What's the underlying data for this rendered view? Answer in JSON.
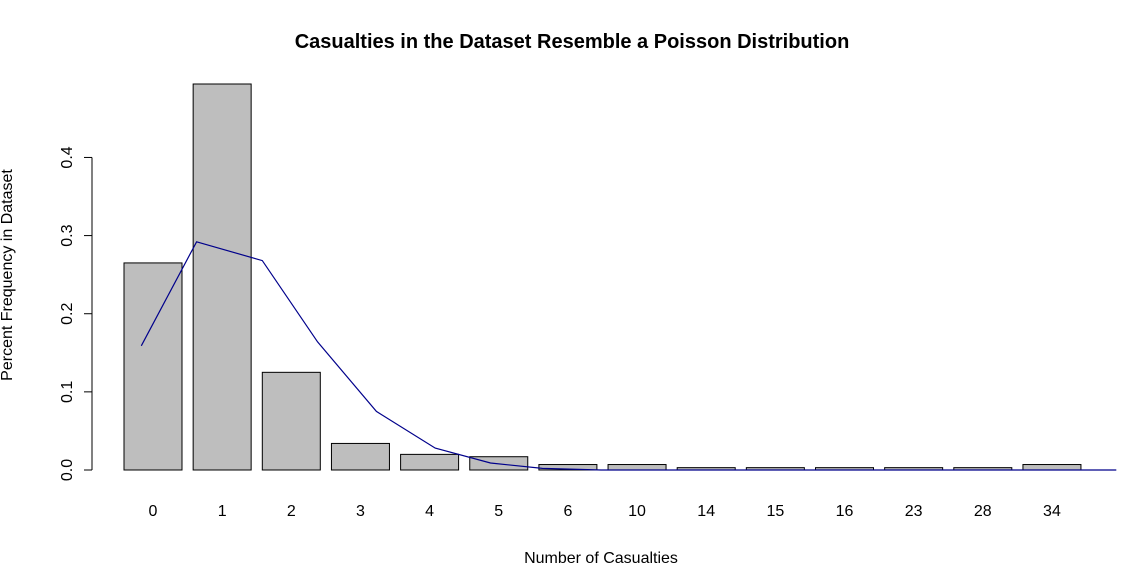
{
  "chart_data": {
    "type": "bar",
    "title": "Casualties in the Dataset Resemble a Poisson Distribution",
    "xlabel": "Number of Casualties",
    "ylabel": "Percent Frequency in Dataset",
    "categories": [
      "0",
      "1",
      "2",
      "3",
      "4",
      "5",
      "6",
      "10",
      "14",
      "15",
      "16",
      "23",
      "28",
      "34"
    ],
    "series": [
      {
        "type": "bar",
        "values": [
          0.265,
          0.494,
          0.125,
          0.034,
          0.02,
          0.017,
          0.007,
          0.007,
          0.003,
          0.003,
          0.003,
          0.003,
          0.003,
          0.007
        ],
        "color": "#bebebe"
      },
      {
        "type": "line",
        "x": [
          0.25,
          1.05,
          2.0,
          2.8,
          3.65,
          4.5,
          5.3,
          6.05,
          6.9,
          7.7,
          8.5,
          9.35,
          10.2,
          11.0,
          11.9,
          12.7,
          13.5,
          14.35
        ],
        "values": [
          0.159,
          0.292,
          0.268,
          0.164,
          0.075,
          0.028,
          0.009,
          0.002,
          0.0,
          0.0,
          0.0,
          0.0,
          0.0,
          0.0,
          0.0,
          0.0,
          0.0,
          0.0
        ],
        "color": "#00008b"
      }
    ],
    "yticks": [
      0.0,
      0.1,
      0.2,
      0.3,
      0.4
    ],
    "ytick_labels": [
      "0.0",
      "0.1",
      "0.2",
      "0.3",
      "0.4"
    ],
    "ylim": [
      0,
      0.494
    ],
    "grid": false
  }
}
